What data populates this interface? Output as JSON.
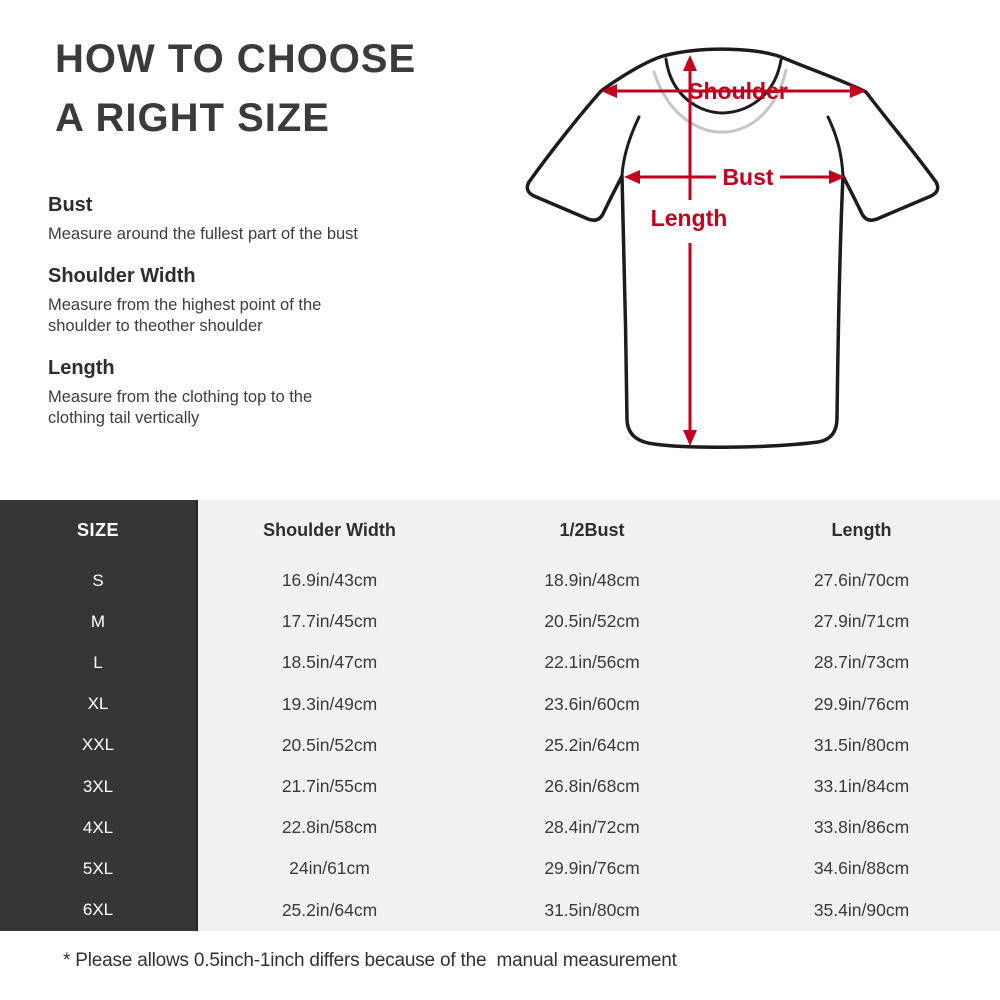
{
  "title": {
    "line1": "HOW TO CHOOSE",
    "line2": "A RIGHT SIZE"
  },
  "instructions": [
    {
      "heading": "Bust",
      "description": "Measure around the fullest part of the bust"
    },
    {
      "heading": "Shoulder Width",
      "description": "Measure from the highest point of the\nshoulder to theother shoulder"
    },
    {
      "heading": "Length",
      "description": "Measure from the clothing top to the\nclothing tail vertically"
    }
  ],
  "diagram": {
    "labels": {
      "shoulder": "Shoulder",
      "bust": "Bust",
      "length": "Length"
    }
  },
  "table": {
    "size_header": "SIZE",
    "columns": [
      "Shoulder Width",
      "1/2Bust",
      "Length"
    ],
    "rows": [
      {
        "size": "S",
        "shoulder": "16.9in/43cm",
        "half_bust": "18.9in/48cm",
        "length": "27.6in/70cm"
      },
      {
        "size": "M",
        "shoulder": "17.7in/45cm",
        "half_bust": "20.5in/52cm",
        "length": "27.9in/71cm"
      },
      {
        "size": "L",
        "shoulder": "18.5in/47cm",
        "half_bust": "22.1in/56cm",
        "length": "28.7in/73cm"
      },
      {
        "size": "XL",
        "shoulder": "19.3in/49cm",
        "half_bust": "23.6in/60cm",
        "length": "29.9in/76cm"
      },
      {
        "size": "XXL",
        "shoulder": "20.5in/52cm",
        "half_bust": "25.2in/64cm",
        "length": "31.5in/80cm"
      },
      {
        "size": "3XL",
        "shoulder": "21.7in/55cm",
        "half_bust": "26.8in/68cm",
        "length": "33.1in/84cm"
      },
      {
        "size": "4XL",
        "shoulder": "22.8in/58cm",
        "half_bust": "28.4in/72cm",
        "length": "33.8in/86cm"
      },
      {
        "size": "5XL",
        "shoulder": "24in/61cm",
        "half_bust": "29.9in/76cm",
        "length": "34.6in/88cm"
      },
      {
        "size": "6XL",
        "shoulder": "25.2in/64cm",
        "half_bust": "31.5in/80cm",
        "length": "35.4in/90cm"
      }
    ]
  },
  "footnote": "* Please allows 0.5inch-1inch differs because of the  manual measurement",
  "colors": {
    "accent_red": "#c1001f",
    "table_dark": "#363636",
    "table_light": "#f1f1f1",
    "title_gray": "#3b3b3b"
  }
}
